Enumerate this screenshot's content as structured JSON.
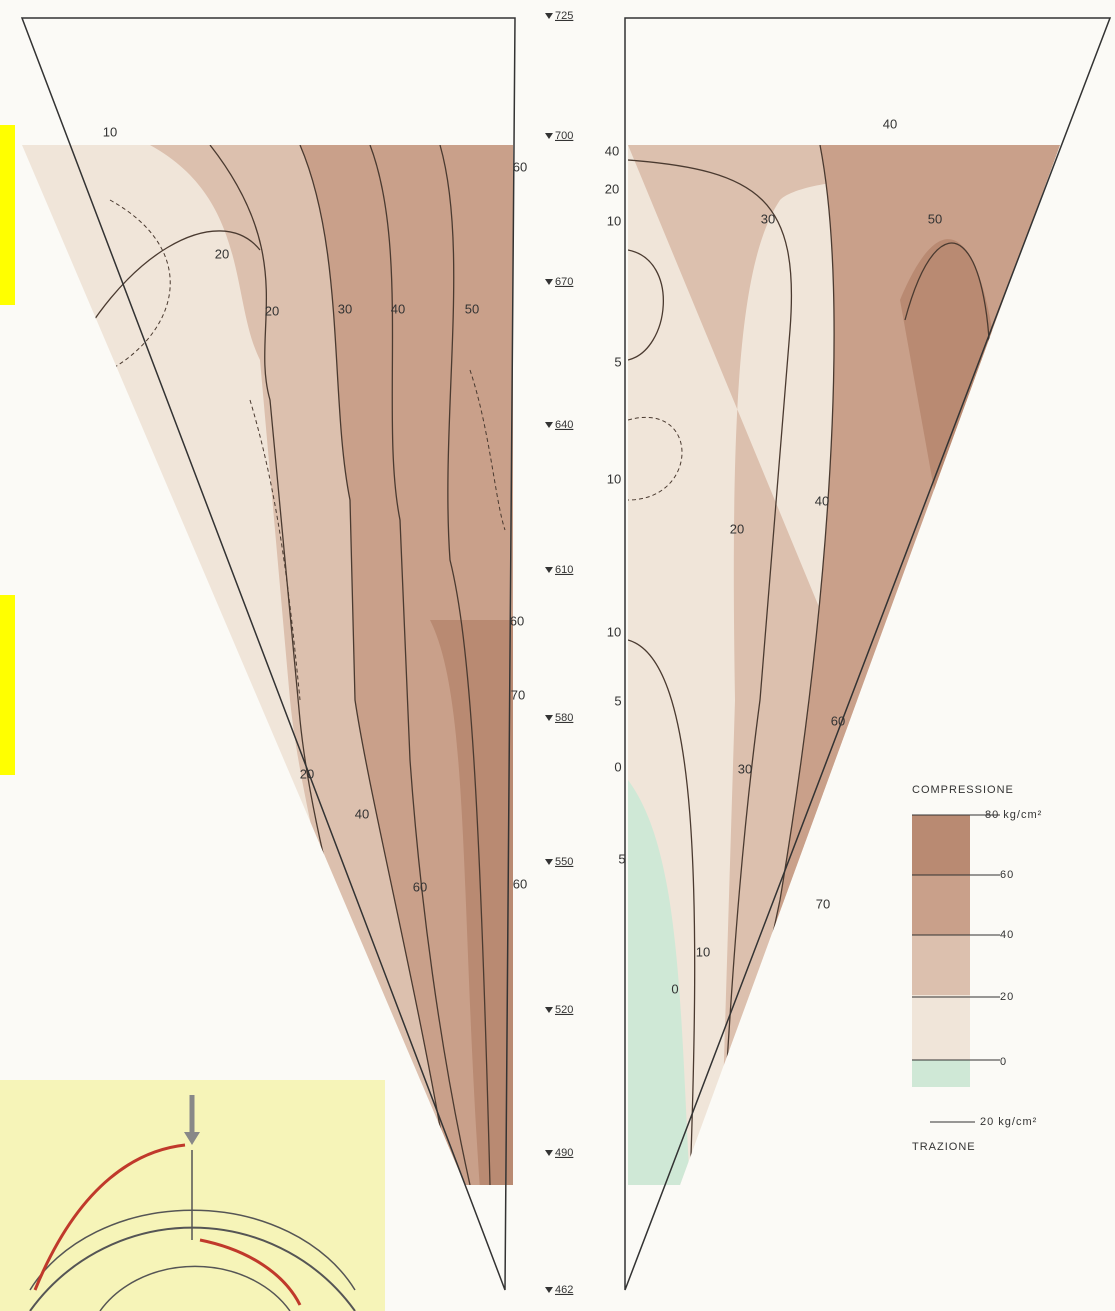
{
  "elevations": [
    725,
    700,
    670,
    640,
    610,
    580,
    550,
    520,
    490,
    462
  ],
  "left_labels": [
    "10",
    "20",
    "20",
    "30",
    "40",
    "50",
    "60",
    "60",
    "70",
    "60",
    "20",
    "40",
    "60"
  ],
  "right_labels": [
    "40",
    "20",
    "10",
    "5",
    "10",
    "10",
    "5",
    "0",
    "5",
    "30",
    "40",
    "50",
    "40",
    "20",
    "30",
    "60",
    "10",
    "0",
    "70"
  ],
  "legend": {
    "title": "COMPRESSIONE",
    "levels": [
      "80 kg/cm²",
      "60",
      "40",
      "20",
      "0"
    ],
    "scale": "20 kg/cm²",
    "tension": "TRAZIONE"
  }
}
